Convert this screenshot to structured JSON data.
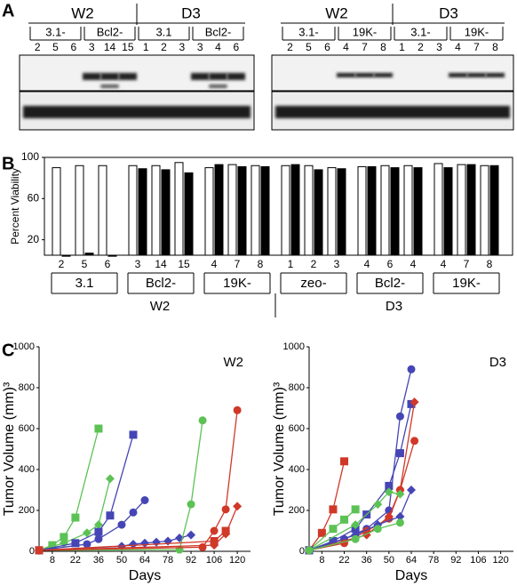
{
  "panel_labels": [
    "A",
    "B",
    "C"
  ],
  "blots": [
    {
      "cell_lines": [
        "W2",
        "D3"
      ],
      "constructs": [
        "3.1-",
        "Bcl2-",
        "3.1",
        "Bcl2-"
      ],
      "lanes": [
        "2",
        "5",
        "6",
        "3",
        "14",
        "15",
        "1",
        "2",
        "3",
        "3",
        "4",
        "6"
      ]
    },
    {
      "cell_lines": [
        "W2",
        "D3"
      ],
      "constructs": [
        "3.1-",
        "19K-",
        "3.1-",
        "19K-"
      ],
      "lanes": [
        "2",
        "5",
        "6",
        "4",
        "7",
        "8",
        "1",
        "2",
        "3",
        "4",
        "7",
        "8"
      ]
    }
  ],
  "chart_data": [
    {
      "type": "bar",
      "y_label": "Percent Viability",
      "categories": [
        "2",
        "5",
        "6",
        "3",
        "14",
        "15",
        "4",
        "7",
        "8",
        "1",
        "2",
        "3",
        "4",
        "6",
        "4",
        "4",
        "7",
        "8"
      ],
      "groups": [
        "3.1",
        "Bcl2-",
        "19K-",
        "zeo-",
        "Bcl2-",
        "19K-"
      ],
      "supergroups": [
        "W2",
        "D3"
      ],
      "series": [
        {
          "color": "#ffffff",
          "values": [
            90,
            92,
            92,
            92,
            92,
            95,
            90,
            93,
            92,
            92,
            92,
            90,
            91,
            92,
            92,
            94,
            93,
            92
          ]
        },
        {
          "color": "#000000",
          "values": [
            4,
            7,
            4,
            89,
            88,
            85,
            93,
            91,
            91,
            93,
            88,
            89,
            91,
            90,
            90,
            90,
            93,
            92
          ]
        }
      ],
      "ylim": [
        5,
        100
      ],
      "yticks": [
        20,
        60,
        100
      ]
    },
    {
      "type": "line",
      "title": "W2",
      "x_label": "Days",
      "y_label": "Tumor Volume (mm)³",
      "xlim": [
        0,
        128
      ],
      "xticks": [
        8,
        22,
        36,
        50,
        64,
        78,
        92,
        106,
        120
      ],
      "ylim": [
        0,
        1000
      ],
      "yticks": [
        0,
        200,
        400,
        600,
        800,
        1000
      ],
      "series": [
        {
          "color": "#5cc255",
          "marker": "square",
          "x": [
            0,
            8,
            15,
            22,
            36
          ],
          "values": [
            5,
            30,
            70,
            165,
            600
          ]
        },
        {
          "color": "#5cc255",
          "marker": "diamond",
          "x": [
            0,
            15,
            29,
            36,
            43
          ],
          "values": [
            5,
            40,
            90,
            130,
            355
          ]
        },
        {
          "color": "#4545b5",
          "marker": "square",
          "x": [
            0,
            22,
            36,
            43,
            57
          ],
          "values": [
            5,
            40,
            95,
            175,
            570
          ]
        },
        {
          "color": "#4545b5",
          "marker": "circle",
          "x": [
            0,
            29,
            36,
            50,
            57,
            64
          ],
          "values": [
            5,
            35,
            60,
            130,
            190,
            250
          ]
        },
        {
          "color": "#4545b5",
          "marker": "diamond",
          "x": [
            0,
            50,
            57,
            64,
            71,
            78,
            85,
            92
          ],
          "values": [
            5,
            25,
            35,
            40,
            45,
            50,
            65,
            80
          ]
        },
        {
          "color": "#5cc255",
          "marker": "circle",
          "x": [
            0,
            85,
            92,
            99
          ],
          "values": [
            5,
            8,
            230,
            640
          ]
        },
        {
          "color": "#d03828",
          "marker": "circle",
          "x": [
            0,
            99,
            106,
            113,
            120
          ],
          "values": [
            5,
            20,
            100,
            205,
            690
          ]
        },
        {
          "color": "#d03828",
          "marker": "diamond",
          "x": [
            0,
            106,
            113,
            120
          ],
          "values": [
            5,
            30,
            85,
            220
          ]
        },
        {
          "color": "#d03828",
          "marker": "square",
          "x": [
            0,
            106,
            113
          ],
          "values": [
            5,
            50,
            100
          ]
        }
      ]
    },
    {
      "type": "line",
      "title": "D3",
      "x_label": "Days",
      "y_label": "Tumor Volume (mm)³",
      "xlim": [
        0,
        128
      ],
      "xticks": [
        8,
        22,
        36,
        50,
        64,
        78,
        92,
        106,
        120
      ],
      "ylim": [
        0,
        1000
      ],
      "yticks": [
        0,
        200,
        400,
        600,
        800,
        1000
      ],
      "series": [
        {
          "color": "#d03828",
          "marker": "square",
          "x": [
            0,
            8,
            15,
            22
          ],
          "values": [
            5,
            90,
            205,
            440
          ]
        },
        {
          "color": "#5cc255",
          "marker": "square",
          "x": [
            0,
            15,
            22,
            29
          ],
          "values": [
            5,
            110,
            155,
            205
          ]
        },
        {
          "color": "#4545b5",
          "marker": "circle",
          "x": [
            0,
            22,
            36,
            50,
            57,
            64
          ],
          "values": [
            5,
            60,
            110,
            200,
            660,
            890
          ]
        },
        {
          "color": "#4545b5",
          "marker": "square",
          "x": [
            0,
            15,
            29,
            36,
            50,
            57,
            64
          ],
          "values": [
            5,
            50,
            110,
            180,
            320,
            480,
            720
          ]
        },
        {
          "color": "#d03828",
          "marker": "diamond",
          "x": [
            0,
            36,
            50,
            57,
            66
          ],
          "values": [
            5,
            80,
            170,
            300,
            730
          ]
        },
        {
          "color": "#d03828",
          "marker": "circle",
          "x": [
            0,
            22,
            36,
            50,
            57,
            66
          ],
          "values": [
            5,
            40,
            100,
            160,
            300,
            540
          ]
        },
        {
          "color": "#5cc255",
          "marker": "diamond",
          "x": [
            0,
            29,
            43,
            50,
            57
          ],
          "values": [
            5,
            130,
            230,
            290,
            280
          ]
        },
        {
          "color": "#4545b5",
          "marker": "diamond",
          "x": [
            0,
            29,
            43,
            57,
            64
          ],
          "values": [
            5,
            80,
            130,
            170,
            300
          ]
        },
        {
          "color": "#5cc255",
          "marker": "circle",
          "x": [
            0,
            29,
            43,
            57
          ],
          "values": [
            5,
            60,
            110,
            140
          ]
        }
      ]
    }
  ]
}
